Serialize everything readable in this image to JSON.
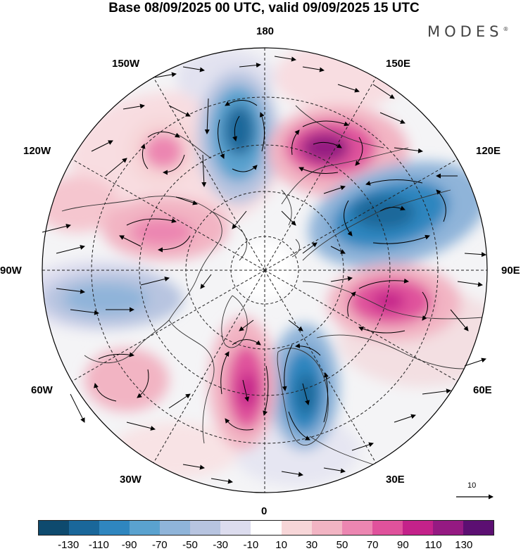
{
  "title": "Base 08/09/2025 00 UTC, valid 09/09/2025 15 UTC",
  "brand": "MODES",
  "brand_mark": "®",
  "longitude_labels": {
    "lon_180": "180",
    "lon_150e": "150E",
    "lon_120e": "120E",
    "lon_90e": "90E",
    "lon_60e": "60E",
    "lon_30e": "30E",
    "lon_0": "0",
    "lon_30w": "30W",
    "lon_60w": "60W",
    "lon_90w": "90W",
    "lon_120w": "120W",
    "lon_150w": "150W"
  },
  "reference_vector": "10",
  "colorbar": {
    "colors": [
      "#0e4a6e",
      "#1a679a",
      "#2f86bf",
      "#5aa2cf",
      "#8fb4d9",
      "#b7c4e0",
      "#dcdcee",
      "#ffffff",
      "#f7d6d8",
      "#f2b4c3",
      "#ec86b1",
      "#e0529c",
      "#c4228a",
      "#951a82",
      "#5c0f72"
    ],
    "ticks": [
      "-130",
      "-110",
      "-90",
      "-70",
      "-50",
      "-30",
      "-10",
      "10",
      "30",
      "50",
      "70",
      "90",
      "110",
      "130"
    ]
  },
  "anomaly_centers": [
    {
      "name": "low-north-pacific",
      "color": "#2b78ac"
    },
    {
      "name": "high-east-siberia",
      "color": "#a3187f"
    },
    {
      "name": "low-north-asia",
      "color": "#2f72a6"
    },
    {
      "name": "high-central-asia",
      "color": "#c72e8d"
    },
    {
      "name": "low-scandinavia",
      "color": "#2a6fa3"
    },
    {
      "name": "high-north-atlantic",
      "color": "#d13c94"
    },
    {
      "name": "low-north-america",
      "color": "#8fb1d7"
    },
    {
      "name": "high-canada",
      "color": "#e58ab2"
    },
    {
      "name": "high-alaska-gulf",
      "color": "#ee8fb7"
    },
    {
      "name": "high-west-atlantic",
      "color": "#f4c2cb"
    }
  ]
}
